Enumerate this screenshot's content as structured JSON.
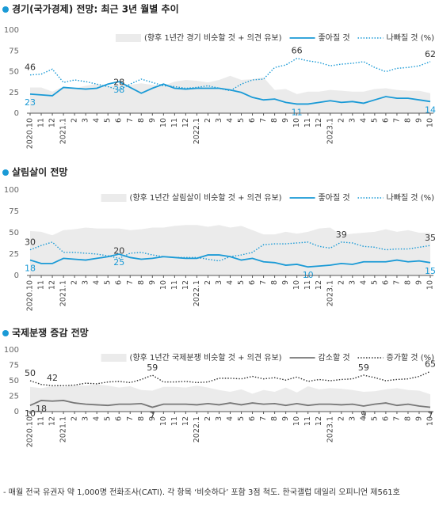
{
  "chart_data": [
    {
      "type": "line",
      "title": "경기(국가경제) 전망: 최근 3년 월별 추이",
      "categories": [
        "2020.10",
        "11",
        "12",
        "2021.1",
        "2",
        "3",
        "4",
        "5",
        "6",
        "7",
        "8",
        "9",
        "10",
        "11",
        "12",
        "2022.1",
        "2",
        "3",
        "4",
        "5",
        "6",
        "7",
        "8",
        "9",
        "10",
        "11",
        "12",
        "2023.1",
        "2",
        "3",
        "4",
        "5",
        "6",
        "7",
        "8",
        "9",
        "10"
      ],
      "ylim": [
        0,
        100
      ],
      "yticks": [
        0,
        25,
        50,
        75,
        100
      ],
      "series": [
        {
          "name": "(향후 1년간 경기 비슷할 것 + 의견 유보)",
          "style": "area",
          "color": "#ebebeb",
          "values": [
            31,
            31,
            26,
            32,
            30,
            33,
            35,
            33,
            34,
            34,
            36,
            34,
            33,
            38,
            40,
            39,
            37,
            40,
            45,
            40,
            41,
            43,
            28,
            29,
            23,
            26,
            26,
            28,
            27,
            26,
            26,
            29,
            30,
            28,
            27,
            27,
            24
          ]
        },
        {
          "name": "좋아질 것",
          "style": "solid",
          "color": "#1a9ad6",
          "labeled": [
            0,
            8,
            24,
            36
          ],
          "values": [
            23,
            22,
            21,
            31,
            30,
            29,
            30,
            35,
            38,
            31,
            24,
            30,
            35,
            30,
            29,
            30,
            30,
            30,
            28,
            25,
            19,
            16,
            17,
            13,
            11,
            11,
            13,
            15,
            13,
            14,
            12,
            16,
            20,
            18,
            18,
            16,
            14
          ]
        },
        {
          "name": "나빠질 것 (%)",
          "style": "dotted",
          "color": "#1a9ad6",
          "labeled": [
            0,
            8,
            24,
            36
          ],
          "values": [
            46,
            47,
            53,
            37,
            40,
            38,
            35,
            32,
            28,
            35,
            41,
            37,
            33,
            32,
            30,
            31,
            33,
            30,
            27,
            35,
            40,
            41,
            55,
            58,
            66,
            63,
            61,
            57,
            59,
            60,
            62,
            55,
            50,
            54,
            55,
            57,
            62
          ]
        }
      ]
    },
    {
      "type": "line",
      "title": "살림살이 전망",
      "categories": [
        "2020.10",
        "11",
        "12",
        "2021.1",
        "2",
        "3",
        "4",
        "5",
        "6",
        "7",
        "8",
        "9",
        "10",
        "11",
        "12",
        "2022.1",
        "2",
        "3",
        "4",
        "5",
        "6",
        "7",
        "8",
        "9",
        "10",
        "11",
        "12",
        "2023.1",
        "2",
        "3",
        "4",
        "5",
        "6",
        "7",
        "8",
        "9",
        "10"
      ],
      "ylim": [
        0,
        100
      ],
      "yticks": [
        0,
        25,
        50,
        75,
        100
      ],
      "series": [
        {
          "name": "(향후 1년간 살림살이 비슷할 것 + 의견 유보)",
          "style": "area",
          "color": "#ebebeb",
          "values": [
            52,
            51,
            47,
            53,
            54,
            56,
            55,
            55,
            55,
            53,
            54,
            56,
            56,
            58,
            59,
            59,
            57,
            59,
            56,
            58,
            53,
            48,
            48,
            51,
            49,
            51,
            55,
            56,
            47,
            49,
            50,
            51,
            54,
            51,
            53,
            50,
            50
          ]
        },
        {
          "name": "좋아질 것",
          "style": "solid",
          "color": "#1a9ad6",
          "labeled": [
            0,
            8,
            25,
            36
          ],
          "values": [
            18,
            14,
            14,
            20,
            19,
            18,
            20,
            22,
            25,
            21,
            19,
            20,
            22,
            21,
            20,
            20,
            24,
            24,
            22,
            18,
            20,
            16,
            15,
            12,
            13,
            10,
            11,
            12,
            14,
            13,
            16,
            16,
            16,
            18,
            16,
            17,
            15
          ]
        },
        {
          "name": "나빠질 것 (%)",
          "style": "dotted",
          "color": "#1a9ad6",
          "labeled": [
            0,
            8,
            28,
            36
          ],
          "values": [
            30,
            35,
            39,
            27,
            27,
            26,
            25,
            23,
            20,
            26,
            27,
            24,
            22,
            21,
            21,
            21,
            19,
            17,
            22,
            24,
            27,
            36,
            37,
            37,
            38,
            39,
            34,
            32,
            39,
            38,
            34,
            33,
            30,
            31,
            31,
            33,
            35
          ]
        }
      ]
    },
    {
      "type": "line",
      "title": "국제분쟁 증감 전망",
      "categories": [
        "2020.10",
        "11",
        "12",
        "2021.1",
        "2",
        "3",
        "4",
        "5",
        "6",
        "7",
        "8",
        "9",
        "10",
        "11",
        "12",
        "2022.1",
        "2",
        "3",
        "4",
        "5",
        "6",
        "7",
        "8",
        "9",
        "10",
        "11",
        "12",
        "2023.1",
        "2",
        "3",
        "4",
        "5",
        "6",
        "7",
        "8",
        "9",
        "10"
      ],
      "ylim": [
        0,
        100
      ],
      "yticks": [
        0,
        25,
        50,
        75,
        100
      ],
      "series": [
        {
          "name": "(향후 1년간 국제분쟁 비슷할 것 + 의견 유보)",
          "style": "area",
          "color": "#ebebeb",
          "values": [
            40,
            38,
            41,
            40,
            43,
            42,
            44,
            42,
            39,
            41,
            35,
            34,
            40,
            40,
            39,
            42,
            39,
            35,
            32,
            36,
            29,
            35,
            32,
            39,
            31,
            41,
            36,
            38,
            37,
            35,
            32,
            33,
            36,
            38,
            35,
            34,
            28
          ]
        },
        {
          "name": "감소할 것",
          "style": "solid",
          "color": "#777777",
          "labeled": [
            0,
            1,
            11,
            30,
            36
          ],
          "values": [
            10,
            18,
            17,
            18,
            14,
            12,
            11,
            10,
            12,
            12,
            13,
            7,
            12,
            12,
            12,
            11,
            13,
            11,
            14,
            11,
            14,
            12,
            13,
            10,
            13,
            10,
            12,
            12,
            11,
            12,
            9,
            12,
            14,
            10,
            12,
            9,
            7
          ]
        },
        {
          "name": "증가할 것 (%)",
          "style": "dotted",
          "color": "#333333",
          "labeled": [
            0,
            2,
            11,
            30,
            36
          ],
          "values": [
            50,
            44,
            42,
            42,
            43,
            46,
            45,
            48,
            49,
            47,
            52,
            59,
            48,
            48,
            49,
            47,
            48,
            54,
            54,
            53,
            57,
            53,
            55,
            51,
            56,
            49,
            52,
            50,
            52,
            53,
            59,
            55,
            50,
            52,
            53,
            57,
            65
          ]
        }
      ]
    }
  ],
  "footer": "- 매월 전국 유권자 약 1,000명 전화조사(CATI). 각 항목 ‘비슷하다’ 포함 3점 척도. 한국갤럽 데일리 오피니언 제561호"
}
